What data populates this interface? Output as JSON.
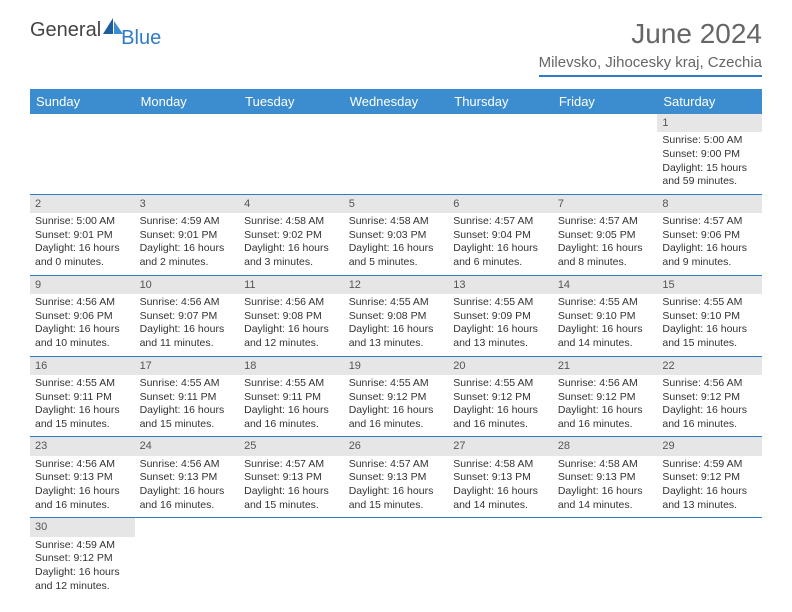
{
  "brand": {
    "part1": "General",
    "part2": "Blue"
  },
  "title": "June 2024",
  "location": "Milevsko, Jihocesky kraj, Czechia",
  "colors": {
    "header_bg": "#3b8dcf",
    "header_text": "#ffffff",
    "accent": "#2d7cc6",
    "daynum_bg": "#e6e6e6",
    "text": "#333333",
    "title_text": "#666666"
  },
  "typography": {
    "title_fontsize": 28,
    "location_fontsize": 15,
    "th_fontsize": 13,
    "cell_fontsize": 10.5
  },
  "weekdays": [
    "Sunday",
    "Monday",
    "Tuesday",
    "Wednesday",
    "Thursday",
    "Friday",
    "Saturday"
  ],
  "weeks": [
    [
      null,
      null,
      null,
      null,
      null,
      null,
      {
        "d": "1",
        "sr": "Sunrise: 5:00 AM",
        "ss": "Sunset: 9:00 PM",
        "dl": "Daylight: 15 hours and 59 minutes."
      }
    ],
    [
      {
        "d": "2",
        "sr": "Sunrise: 5:00 AM",
        "ss": "Sunset: 9:01 PM",
        "dl": "Daylight: 16 hours and 0 minutes."
      },
      {
        "d": "3",
        "sr": "Sunrise: 4:59 AM",
        "ss": "Sunset: 9:01 PM",
        "dl": "Daylight: 16 hours and 2 minutes."
      },
      {
        "d": "4",
        "sr": "Sunrise: 4:58 AM",
        "ss": "Sunset: 9:02 PM",
        "dl": "Daylight: 16 hours and 3 minutes."
      },
      {
        "d": "5",
        "sr": "Sunrise: 4:58 AM",
        "ss": "Sunset: 9:03 PM",
        "dl": "Daylight: 16 hours and 5 minutes."
      },
      {
        "d": "6",
        "sr": "Sunrise: 4:57 AM",
        "ss": "Sunset: 9:04 PM",
        "dl": "Daylight: 16 hours and 6 minutes."
      },
      {
        "d": "7",
        "sr": "Sunrise: 4:57 AM",
        "ss": "Sunset: 9:05 PM",
        "dl": "Daylight: 16 hours and 8 minutes."
      },
      {
        "d": "8",
        "sr": "Sunrise: 4:57 AM",
        "ss": "Sunset: 9:06 PM",
        "dl": "Daylight: 16 hours and 9 minutes."
      }
    ],
    [
      {
        "d": "9",
        "sr": "Sunrise: 4:56 AM",
        "ss": "Sunset: 9:06 PM",
        "dl": "Daylight: 16 hours and 10 minutes."
      },
      {
        "d": "10",
        "sr": "Sunrise: 4:56 AM",
        "ss": "Sunset: 9:07 PM",
        "dl": "Daylight: 16 hours and 11 minutes."
      },
      {
        "d": "11",
        "sr": "Sunrise: 4:56 AM",
        "ss": "Sunset: 9:08 PM",
        "dl": "Daylight: 16 hours and 12 minutes."
      },
      {
        "d": "12",
        "sr": "Sunrise: 4:55 AM",
        "ss": "Sunset: 9:08 PM",
        "dl": "Daylight: 16 hours and 13 minutes."
      },
      {
        "d": "13",
        "sr": "Sunrise: 4:55 AM",
        "ss": "Sunset: 9:09 PM",
        "dl": "Daylight: 16 hours and 13 minutes."
      },
      {
        "d": "14",
        "sr": "Sunrise: 4:55 AM",
        "ss": "Sunset: 9:10 PM",
        "dl": "Daylight: 16 hours and 14 minutes."
      },
      {
        "d": "15",
        "sr": "Sunrise: 4:55 AM",
        "ss": "Sunset: 9:10 PM",
        "dl": "Daylight: 16 hours and 15 minutes."
      }
    ],
    [
      {
        "d": "16",
        "sr": "Sunrise: 4:55 AM",
        "ss": "Sunset: 9:11 PM",
        "dl": "Daylight: 16 hours and 15 minutes."
      },
      {
        "d": "17",
        "sr": "Sunrise: 4:55 AM",
        "ss": "Sunset: 9:11 PM",
        "dl": "Daylight: 16 hours and 15 minutes."
      },
      {
        "d": "18",
        "sr": "Sunrise: 4:55 AM",
        "ss": "Sunset: 9:11 PM",
        "dl": "Daylight: 16 hours and 16 minutes."
      },
      {
        "d": "19",
        "sr": "Sunrise: 4:55 AM",
        "ss": "Sunset: 9:12 PM",
        "dl": "Daylight: 16 hours and 16 minutes."
      },
      {
        "d": "20",
        "sr": "Sunrise: 4:55 AM",
        "ss": "Sunset: 9:12 PM",
        "dl": "Daylight: 16 hours and 16 minutes."
      },
      {
        "d": "21",
        "sr": "Sunrise: 4:56 AM",
        "ss": "Sunset: 9:12 PM",
        "dl": "Daylight: 16 hours and 16 minutes."
      },
      {
        "d": "22",
        "sr": "Sunrise: 4:56 AM",
        "ss": "Sunset: 9:12 PM",
        "dl": "Daylight: 16 hours and 16 minutes."
      }
    ],
    [
      {
        "d": "23",
        "sr": "Sunrise: 4:56 AM",
        "ss": "Sunset: 9:13 PM",
        "dl": "Daylight: 16 hours and 16 minutes."
      },
      {
        "d": "24",
        "sr": "Sunrise: 4:56 AM",
        "ss": "Sunset: 9:13 PM",
        "dl": "Daylight: 16 hours and 16 minutes."
      },
      {
        "d": "25",
        "sr": "Sunrise: 4:57 AM",
        "ss": "Sunset: 9:13 PM",
        "dl": "Daylight: 16 hours and 15 minutes."
      },
      {
        "d": "26",
        "sr": "Sunrise: 4:57 AM",
        "ss": "Sunset: 9:13 PM",
        "dl": "Daylight: 16 hours and 15 minutes."
      },
      {
        "d": "27",
        "sr": "Sunrise: 4:58 AM",
        "ss": "Sunset: 9:13 PM",
        "dl": "Daylight: 16 hours and 14 minutes."
      },
      {
        "d": "28",
        "sr": "Sunrise: 4:58 AM",
        "ss": "Sunset: 9:13 PM",
        "dl": "Daylight: 16 hours and 14 minutes."
      },
      {
        "d": "29",
        "sr": "Sunrise: 4:59 AM",
        "ss": "Sunset: 9:12 PM",
        "dl": "Daylight: 16 hours and 13 minutes."
      }
    ],
    [
      {
        "d": "30",
        "sr": "Sunrise: 4:59 AM",
        "ss": "Sunset: 9:12 PM",
        "dl": "Daylight: 16 hours and 12 minutes."
      },
      null,
      null,
      null,
      null,
      null,
      null
    ]
  ]
}
